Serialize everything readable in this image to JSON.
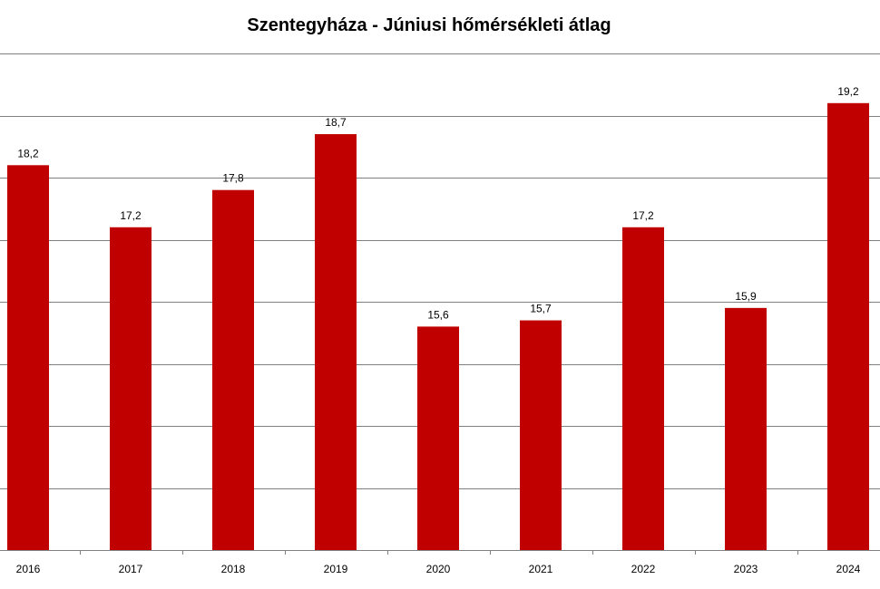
{
  "chart_data": {
    "type": "bar",
    "title": "Szentegyháza - Júniusi hőmérsékleti átlag",
    "categories": [
      "2016",
      "2017",
      "2018",
      "2019",
      "2020",
      "2021",
      "2022",
      "2023",
      "2024"
    ],
    "values": [
      18.2,
      17.2,
      17.8,
      18.7,
      15.6,
      15.7,
      17.2,
      15.9,
      19.2
    ],
    "value_labels": [
      "18,2",
      "17,2",
      "17,8",
      "18,7",
      "15,6",
      "15,7",
      "17,2",
      "15,9",
      "19,2"
    ],
    "ylim": [
      12,
      20
    ],
    "y_gridlines": [
      13,
      14,
      15,
      16,
      17,
      18,
      19,
      20
    ],
    "grid": true,
    "bar_color": "#c00000",
    "grid_color": "#808080"
  }
}
